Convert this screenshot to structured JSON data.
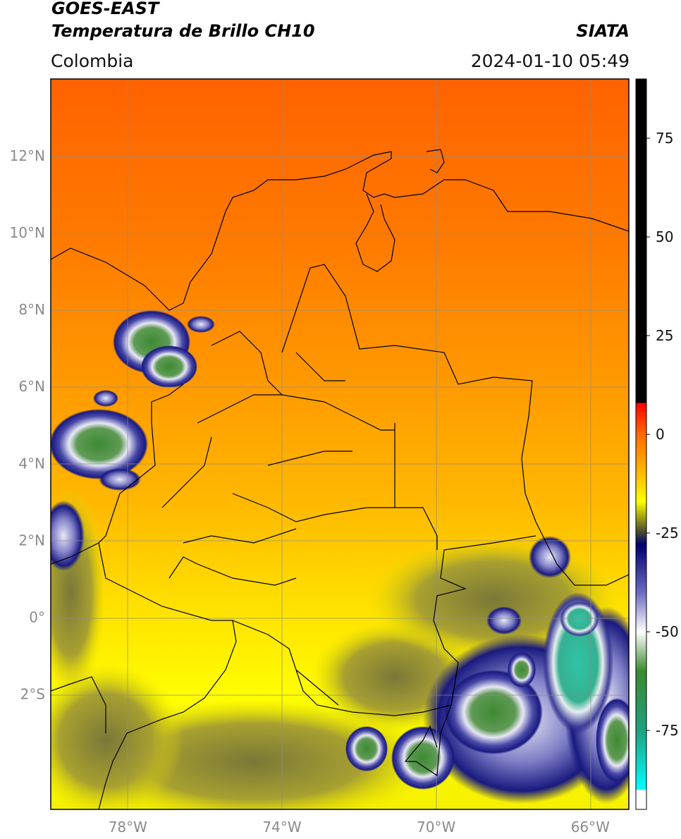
{
  "header": {
    "line1": "GOES-EAST",
    "line2": "Temperatura de Brillo CH10",
    "region": "Colombia",
    "brand": "SIATA",
    "datetime": "2024-01-10 05:49"
  },
  "map": {
    "lon_range": [
      -80.0,
      -65.0
    ],
    "lat_range": [
      -5.0,
      14.0
    ],
    "lon_ticks": [
      {
        "value": -78,
        "label": "78°W"
      },
      {
        "value": -74,
        "label": "74°W"
      },
      {
        "value": -70,
        "label": "70°W"
      },
      {
        "value": -66,
        "label": "66°W"
      }
    ],
    "lat_ticks": [
      {
        "value": 12,
        "label": "12°N"
      },
      {
        "value": 10,
        "label": "10°N"
      },
      {
        "value": 8,
        "label": "8°N"
      },
      {
        "value": 6,
        "label": "6°N"
      },
      {
        "value": 4,
        "label": "4°N"
      },
      {
        "value": 2,
        "label": "2°N"
      },
      {
        "value": 0,
        "label": "0°"
      },
      {
        "value": -2,
        "label": "2°S"
      }
    ],
    "grid": true,
    "colors": {
      "warm_north": "#ff6a00",
      "mid": "#ffa500",
      "south": "#ffe800",
      "cloud_dark": "#1a1a8a",
      "cloud_white": "#f0f0ff",
      "cloud_green": "#3d8a32",
      "cloud_teal": "#2fc4a8"
    }
  },
  "colorbar": {
    "range": [
      -95,
      90
    ],
    "ticks": [
      {
        "value": 75,
        "label": "75"
      },
      {
        "value": 50,
        "label": "50"
      },
      {
        "value": 25,
        "label": "25"
      },
      {
        "value": 0,
        "label": "0"
      },
      {
        "value": -25,
        "label": "-25"
      },
      {
        "value": -50,
        "label": "-50"
      },
      {
        "value": -75,
        "label": "-75"
      }
    ],
    "stops": [
      {
        "value": 90,
        "color": "#000000"
      },
      {
        "value": 8,
        "color": "#000000"
      },
      {
        "value": 7.9,
        "color": "#ff0000"
      },
      {
        "value": 0,
        "color": "#ff6a00"
      },
      {
        "value": -10,
        "color": "#ffbb00"
      },
      {
        "value": -17,
        "color": "#ffff00"
      },
      {
        "value": -24,
        "color": "#5a5a28"
      },
      {
        "value": -28,
        "color": "#000070"
      },
      {
        "value": -40,
        "color": "#6a6ac0"
      },
      {
        "value": -50,
        "color": "#ffffff"
      },
      {
        "value": -60,
        "color": "#3b8a2e"
      },
      {
        "value": -75,
        "color": "#20a080"
      },
      {
        "value": -90,
        "color": "#00ffff"
      },
      {
        "value": -90.1,
        "color": "#ffffff"
      },
      {
        "value": -95,
        "color": "#ffffff"
      }
    ]
  }
}
